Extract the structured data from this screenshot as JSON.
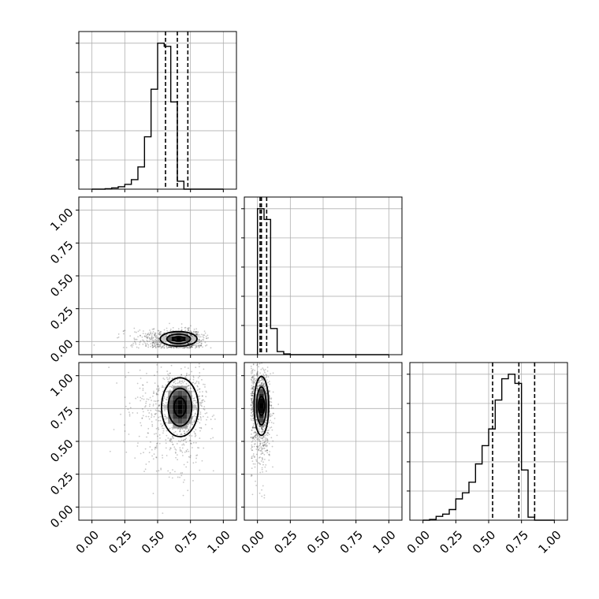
{
  "chart_data": {
    "type": "corner",
    "axis_ticks": [
      "0.00",
      "0.25",
      "0.50",
      "0.75",
      "1.00"
    ],
    "range": [
      -0.1,
      1.1
    ],
    "grid": true,
    "histograms": [
      {
        "bins": [
          0.0,
          0.05,
          0.1,
          0.15,
          0.2,
          0.25,
          0.3,
          0.35,
          0.4,
          0.45,
          0.5,
          0.55,
          0.6,
          0.65,
          0.7,
          0.75,
          0.8,
          0.85,
          0.9,
          0.95,
          1.0
        ],
        "counts": [
          0,
          0,
          0.003,
          0.008,
          0.015,
          0.03,
          0.06,
          0.14,
          0.33,
          0.63,
          0.92,
          0.9,
          0.55,
          0.05,
          0,
          0,
          0,
          0,
          0,
          0
        ],
        "quantiles": [
          0.56,
          0.65,
          0.73
        ]
      },
      {
        "bins": [
          0.0,
          0.05,
          0.1,
          0.15,
          0.2,
          0.25,
          0.3,
          0.35,
          0.4,
          0.45,
          0.5,
          0.55,
          0.6,
          0.65,
          0.7,
          0.75,
          0.8,
          0.85,
          0.9,
          0.95,
          1.0
        ],
        "counts": [
          0.95,
          0.88,
          0.17,
          0.02,
          0.005,
          0,
          0,
          0,
          0,
          0,
          0,
          0,
          0,
          0,
          0,
          0,
          0,
          0,
          0,
          0
        ],
        "quantiles": [
          0.02,
          0.03,
          0.07
        ]
      },
      {
        "bins": [
          0.0,
          0.05,
          0.1,
          0.15,
          0.2,
          0.25,
          0.3,
          0.35,
          0.4,
          0.45,
          0.5,
          0.55,
          0.6,
          0.65,
          0.7,
          0.75,
          0.8,
          0.85,
          0.9,
          0.95,
          1.0
        ],
        "counts": [
          0,
          0.005,
          0.025,
          0.04,
          0.07,
          0.14,
          0.18,
          0.25,
          0.37,
          0.49,
          0.6,
          0.79,
          0.93,
          0.96,
          0.9,
          0.33,
          0.02,
          0,
          0,
          0
        ],
        "quantiles": [
          0.53,
          0.73,
          0.85
        ]
      }
    ],
    "pairs": [
      {
        "x_param": 1,
        "y_param": 2,
        "x_center": 0.66,
        "y_center": 0.02,
        "x_spread": 0.1,
        "y_spread": 0.04
      },
      {
        "x_param": 1,
        "y_param": 3,
        "x_center": 0.67,
        "y_center": 0.76,
        "x_spread": 0.1,
        "y_spread": 0.16
      },
      {
        "x_param": 2,
        "y_param": 3,
        "x_center": 0.03,
        "y_center": 0.77,
        "x_spread": 0.04,
        "y_spread": 0.16
      }
    ]
  }
}
